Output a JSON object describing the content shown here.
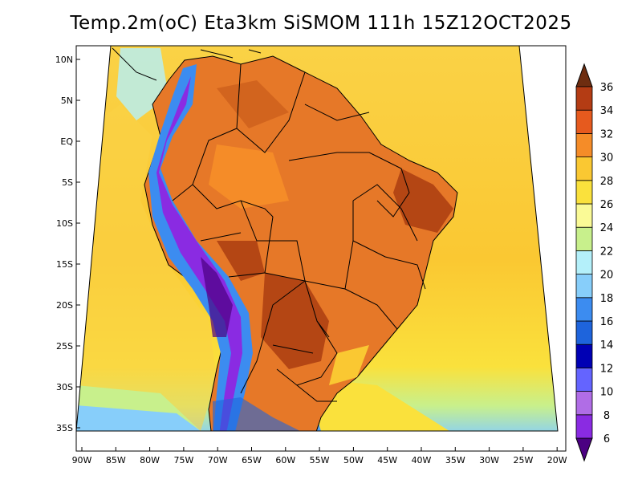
{
  "title": "Temp.2m(oC) Eta3km SiSMOM 111h 15Z12OCT2025",
  "lat_labels": [
    "10N",
    "5N",
    "EQ",
    "5S",
    "10S",
    "15S",
    "20S",
    "25S",
    "30S",
    "35S"
  ],
  "lon_labels": [
    "90W",
    "85W",
    "80W",
    "75W",
    "70W",
    "65W",
    "60W",
    "55W",
    "50W",
    "45W",
    "40W",
    "35W",
    "30W",
    "25W",
    "20W"
  ],
  "colorbar": {
    "labels": [
      "6",
      "8",
      "10",
      "12",
      "14",
      "16",
      "18",
      "20",
      "22",
      "24",
      "26",
      "28",
      "30",
      "32",
      "34",
      "36"
    ],
    "colors": [
      "#4b0082",
      "#8a2be2",
      "#b06de6",
      "#6464ff",
      "#0000b4",
      "#1e64dc",
      "#3c8cf0",
      "#87cefa",
      "#b4f0fa",
      "#c8f08c",
      "#fafa96",
      "#fae13c",
      "#fac832",
      "#f58c28",
      "#e65a1e",
      "#b43c14",
      "#6e2d10"
    ],
    "min_arrow_color": "#4b0082",
    "max_arrow_color": "#6e2d10"
  },
  "colors": {
    "ocean_base": "#fac832",
    "ocean_south": "#c8f08c",
    "land_hot": "#e67828",
    "land_very_hot": "#b44614",
    "andes_cold": "#3c8cf0",
    "andes_very_cold": "#8a2be2",
    "border": "#000000"
  }
}
